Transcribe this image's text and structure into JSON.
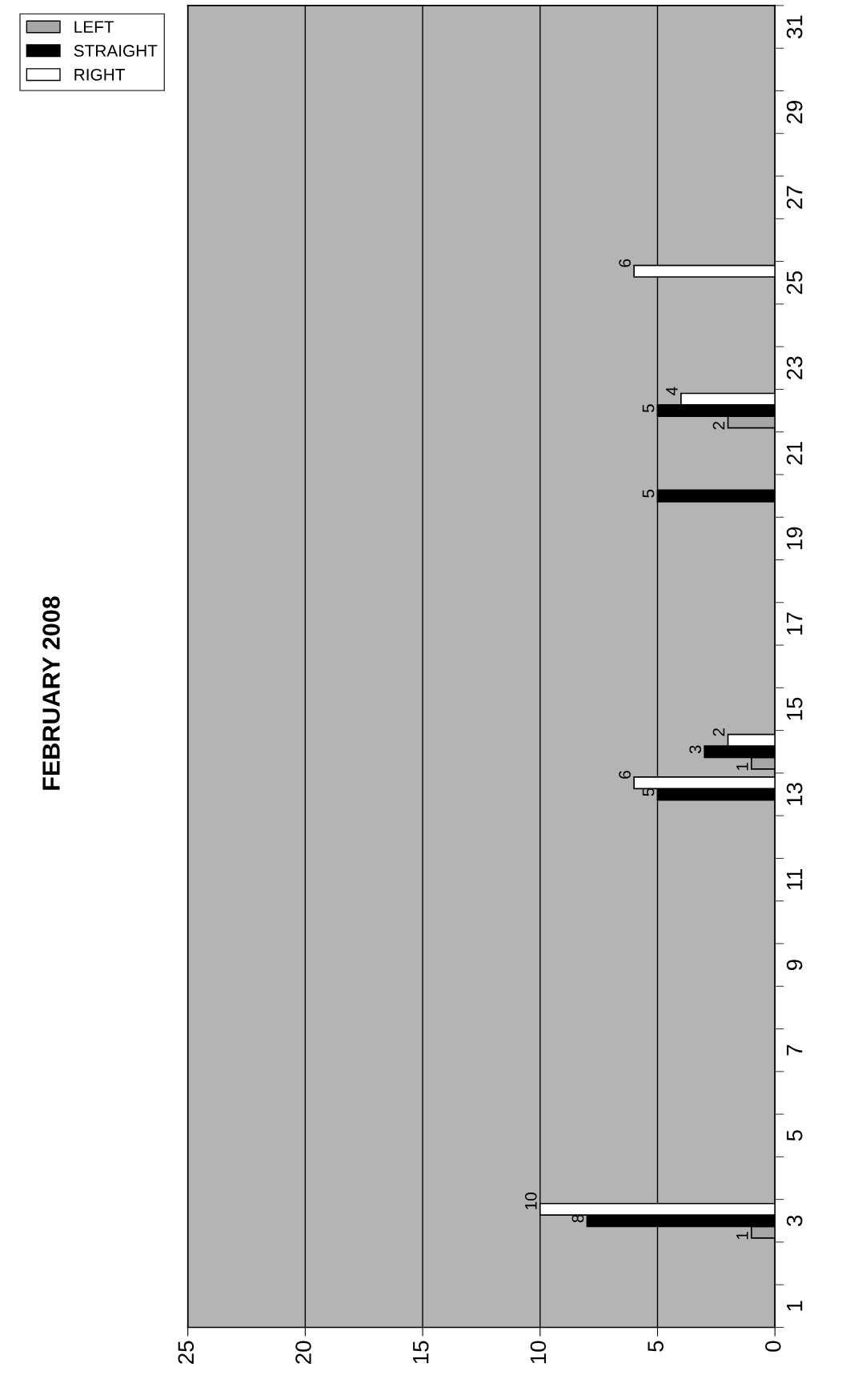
{
  "chart_data": {
    "type": "bar",
    "title": "FEBRUARY 2008",
    "orientation": "horizontal",
    "categories": [
      "31",
      null,
      "29",
      null,
      "27",
      null,
      "25",
      null,
      "23",
      null,
      "21",
      null,
      "19",
      null,
      "17",
      null,
      "15",
      null,
      "13",
      null,
      "11",
      null,
      "9",
      null,
      "7",
      null,
      "5",
      null,
      "3",
      null,
      "1"
    ],
    "series": [
      {
        "name": "LEFT",
        "color": "#a6a6a6",
        "values": [
          null,
          null,
          null,
          null,
          null,
          null,
          null,
          null,
          null,
          2,
          null,
          null,
          null,
          null,
          null,
          null,
          null,
          1,
          null,
          null,
          null,
          null,
          null,
          null,
          null,
          null,
          null,
          null,
          1,
          null,
          null
        ]
      },
      {
        "name": "STRAIGHT",
        "color": "#000000",
        "values": [
          null,
          null,
          null,
          null,
          null,
          null,
          null,
          null,
          null,
          5,
          null,
          5,
          null,
          null,
          null,
          null,
          null,
          3,
          5,
          null,
          null,
          null,
          null,
          null,
          null,
          null,
          null,
          null,
          8,
          null,
          null
        ]
      },
      {
        "name": "RIGHT",
        "color": "#ffffff",
        "values": [
          null,
          null,
          null,
          null,
          null,
          null,
          6,
          null,
          null,
          4,
          null,
          null,
          null,
          null,
          null,
          null,
          null,
          2,
          6,
          null,
          null,
          null,
          null,
          null,
          null,
          null,
          null,
          null,
          10,
          null,
          null
        ]
      }
    ],
    "xlim": [
      25,
      0
    ],
    "xticks": [
      25,
      20,
      15,
      10,
      5,
      0
    ],
    "grid": "x",
    "legend": "top left",
    "data_labels": true
  }
}
